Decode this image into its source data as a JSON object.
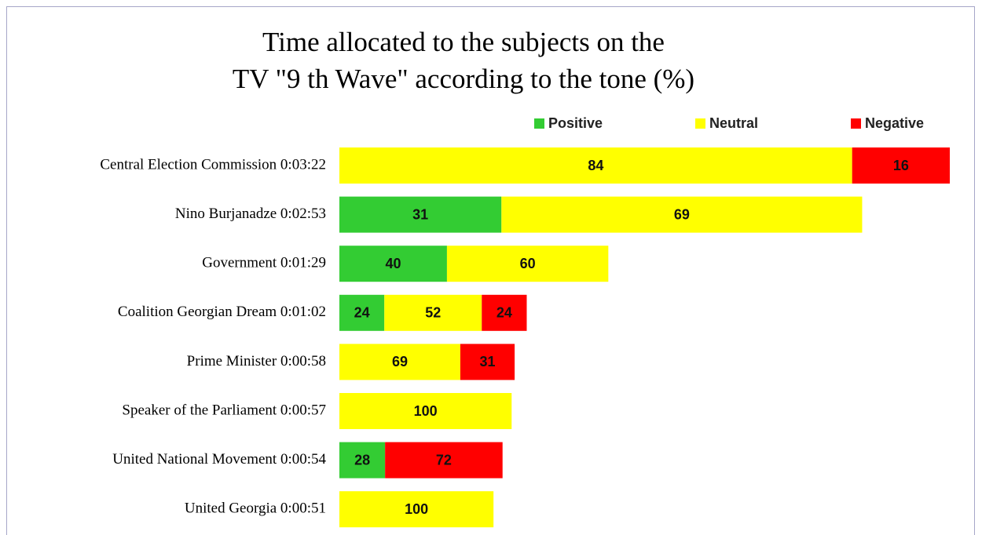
{
  "chart_data": {
    "type": "bar",
    "orientation": "horizontal",
    "stacked": true,
    "title": [
      "Time allocated to the subjects on the",
      "TV \"9 th Wave\" according to the tone (%)"
    ],
    "categories": [
      "Central Election Commission 0:03:22",
      "Nino Burjanadze 0:02:53",
      "Government 0:01:29",
      "Coalition Georgian Dream 0:01:02",
      "Prime Minister 0:00:58",
      "Speaker of the Parliament 0:00:57",
      "United National Movement 0:00:54",
      "United Georgia 0:00:51"
    ],
    "series": [
      {
        "name": "Positive",
        "color": "#33cc33",
        "values": [
          null,
          31,
          40,
          24,
          null,
          null,
          28,
          null
        ]
      },
      {
        "name": "Neutral",
        "color": "#ffff00",
        "values": [
          84,
          69,
          60,
          52,
          69,
          100,
          null,
          100
        ]
      },
      {
        "name": "Negative",
        "color": "#ff0000",
        "values": [
          16,
          null,
          null,
          24,
          31,
          null,
          72,
          null
        ]
      }
    ],
    "legend": "top"
  }
}
